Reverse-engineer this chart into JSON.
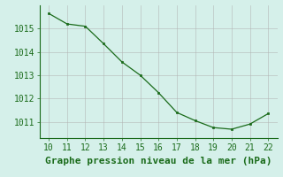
{
  "x": [
    10,
    11,
    12,
    13,
    14,
    15,
    16,
    17,
    18,
    19,
    20,
    21,
    22
  ],
  "y": [
    1015.65,
    1015.2,
    1015.1,
    1014.35,
    1013.57,
    1013.0,
    1012.25,
    1011.4,
    1011.05,
    1010.75,
    1010.68,
    1010.9,
    1011.35
  ],
  "line_color": "#1a6b1a",
  "marker_color": "#1a6b1a",
  "bg_color": "#d5f0ea",
  "grid_color": "#b0b0b0",
  "xlabel": "Graphe pression niveau de la mer (hPa)",
  "xlabel_color": "#1a6b1a",
  "tick_color": "#1a6b1a",
  "border_color": "#1a6b1a",
  "ylim": [
    1010.3,
    1016.0
  ],
  "xlim": [
    9.5,
    22.5
  ],
  "yticks": [
    1011,
    1012,
    1013,
    1014,
    1015
  ],
  "xticks": [
    10,
    11,
    12,
    13,
    14,
    15,
    16,
    17,
    18,
    19,
    20,
    21,
    22
  ],
  "xlabel_fontsize": 8,
  "tick_fontsize": 7
}
